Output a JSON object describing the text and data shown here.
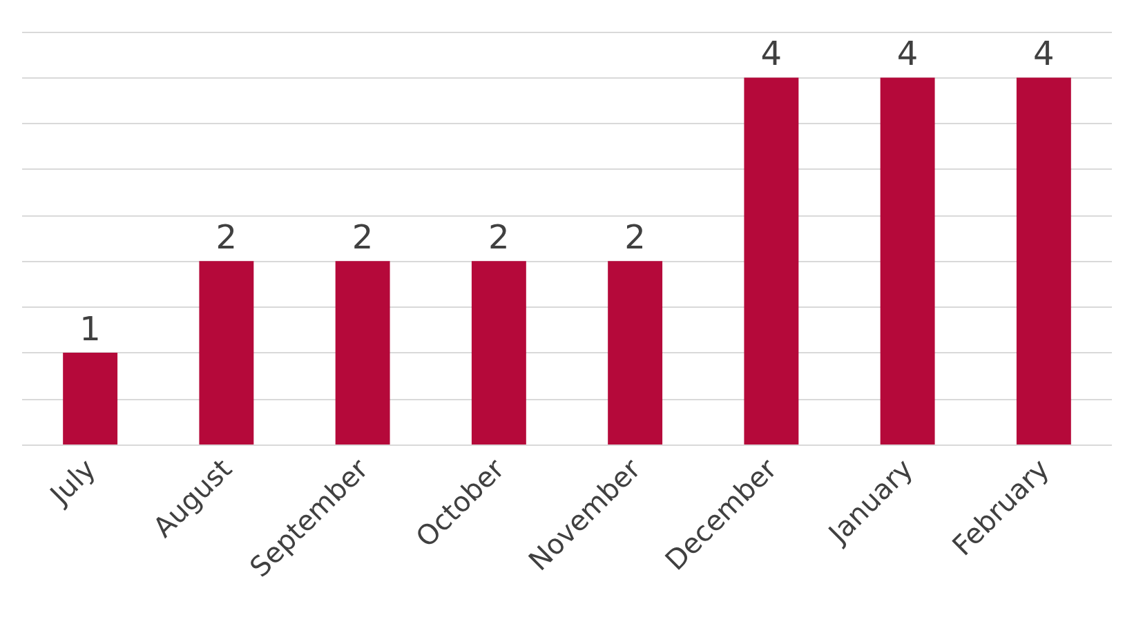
{
  "chart_data": {
    "type": "bar",
    "categories": [
      "July",
      "August",
      "September",
      "October",
      "November",
      "December",
      "January",
      "February"
    ],
    "values": [
      1,
      2,
      2,
      2,
      2,
      4,
      4,
      4
    ],
    "color": "#b5093a",
    "ylim": [
      0,
      4.5
    ],
    "yticks": [
      {
        "value": 0,
        "label": null
      },
      {
        "value": 0.5,
        "label": null
      },
      {
        "value": 1,
        "label": null
      },
      {
        "value": 1.5,
        "label": null
      },
      {
        "value": 2,
        "label": null
      },
      {
        "value": 2.5,
        "label": null
      },
      {
        "value": 3,
        "label": null
      },
      {
        "value": 3.5,
        "label": null
      },
      {
        "value": 4,
        "label": null
      },
      {
        "value": 4.5,
        "label": null
      }
    ],
    "tick_labels": "x",
    "grid": "y",
    "data_labels": true
  }
}
